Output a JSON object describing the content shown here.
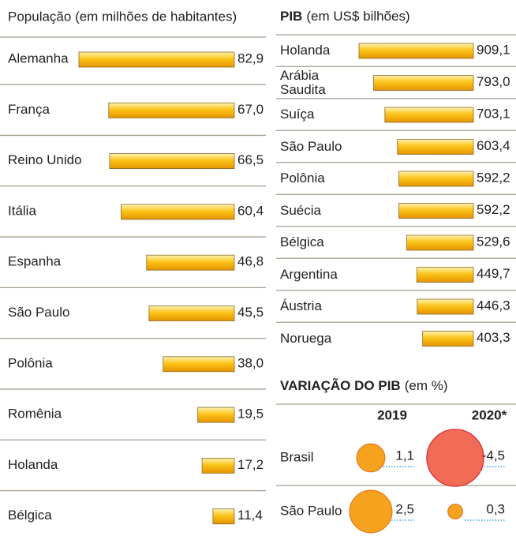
{
  "chart_data": [
    {
      "type": "hbar",
      "title": "População (em milhões de habitantes)",
      "categories": [
        "Alemanha",
        "França",
        "Reino Unido",
        "Itália",
        "Espanha",
        "São Paulo",
        "Polônia",
        "Romênia",
        "Holanda",
        "Bélgica"
      ],
      "values": [
        82.9,
        67.0,
        66.5,
        60.4,
        46.8,
        45.5,
        38.0,
        19.5,
        17.2,
        11.4
      ],
      "value_labels": [
        "82,9",
        "67,0",
        "66,5",
        "60,4",
        "46,8",
        "45,5",
        "38,0",
        "19,5",
        "17,2",
        "11,4"
      ],
      "color": "#f5b400"
    },
    {
      "type": "hbar",
      "title": "PIB",
      "subtitle": "(em US$ bilhões)",
      "categories": [
        "Holanda",
        "Arábia Saudita",
        "Suíça",
        "São Paulo",
        "Polônia",
        "Suécia",
        "Bélgica",
        "Argentina",
        "Áustria",
        "Noruega"
      ],
      "values": [
        909.1,
        793.0,
        703.1,
        603.4,
        592.2,
        592.2,
        529.6,
        449.7,
        446.3,
        403.3
      ],
      "value_labels": [
        "909,1",
        "793,0",
        "703,1",
        "603,4",
        "592,2",
        "592,2",
        "529,6",
        "449,7",
        "446,3",
        "403,3"
      ],
      "color": "#f5b400"
    },
    {
      "type": "bubble",
      "title": "VARIAÇÃO DO PIB",
      "subtitle": "(em %)",
      "categories": [
        "Brasil",
        "São Paulo"
      ],
      "series": [
        {
          "name": "2019",
          "values": [
            1.1,
            2.5
          ],
          "value_labels": [
            "1,1",
            "2,5"
          ],
          "colors": [
            "#f5a31f",
            "#f5a31f"
          ]
        },
        {
          "name": "2020*",
          "values": [
            -4.5,
            0.3
          ],
          "value_labels": [
            "-4,5",
            "0,3"
          ],
          "colors": [
            "#f26b57",
            "#f5a31f"
          ]
        }
      ]
    }
  ]
}
